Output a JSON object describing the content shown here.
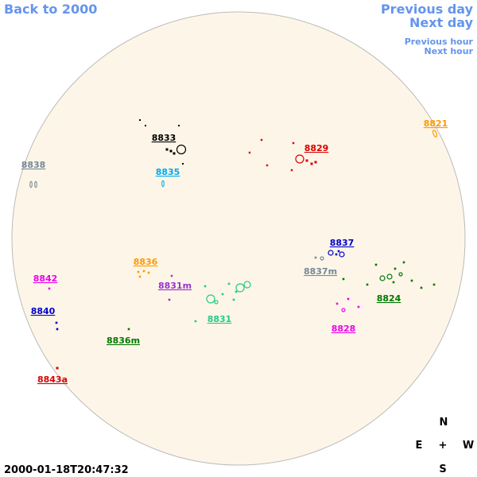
{
  "nav": {
    "back": "Back to 2000",
    "previous_day": "Previous day",
    "next_day": "Next day",
    "previous_hour": "Previous hour",
    "next_hour": "Next hour"
  },
  "regions": [
    {
      "label": "8821",
      "color": "#ff9900"
    },
    {
      "label": "8829",
      "color": "#dd0000"
    },
    {
      "label": "8833",
      "color": "#000000"
    },
    {
      "label": "8835",
      "color": "#00aaee"
    },
    {
      "label": "8838",
      "color": "#778899"
    },
    {
      "label": "8837",
      "color": "#0000cc"
    },
    {
      "label": "8837m",
      "color": "#778899"
    },
    {
      "label": "8824",
      "color": "#007700"
    },
    {
      "label": "8828",
      "color": "#ee00ee"
    },
    {
      "label": "8836",
      "color": "#ff9900"
    },
    {
      "label": "8831m",
      "color": "#9933cc"
    },
    {
      "label": "8831",
      "color": "#22cc88"
    },
    {
      "label": "8842",
      "color": "#ee00ee"
    },
    {
      "label": "8840",
      "color": "#0000cc"
    },
    {
      "label": "8836m",
      "color": "#007700"
    },
    {
      "label": "8843a",
      "color": "#dd0000"
    }
  ],
  "timestamp": "2000-01-18T20:47:32",
  "compass": {
    "north": "N",
    "east": "E",
    "center": "+",
    "west": "W",
    "south": "S"
  }
}
